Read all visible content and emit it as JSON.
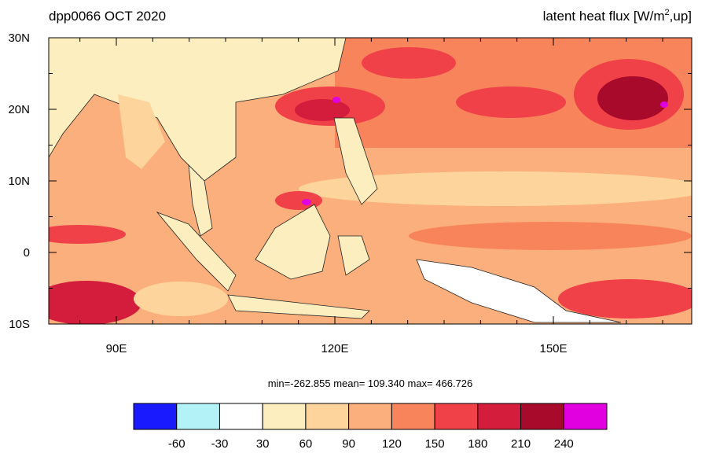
{
  "title_left": "dpp0066 OCT 2020",
  "title_right": {
    "text": "latent heat flux [W/m",
    "sup": "2",
    "tail": ",up]"
  },
  "lon_ticks": [
    {
      "value": 90,
      "label": "90E"
    },
    {
      "value": 120,
      "label": "120E"
    },
    {
      "value": 150,
      "label": "150E"
    }
  ],
  "lat_ticks": [
    {
      "value": 30,
      "label": "30N"
    },
    {
      "value": 20,
      "label": "20N"
    },
    {
      "value": 10,
      "label": "10N"
    },
    {
      "value": 0,
      "label": "0"
    },
    {
      "value": -10,
      "label": "10S"
    }
  ],
  "stats": "min=-262.855  mean= 109.340  max= 466.726",
  "colorbar": {
    "colors": [
      "#1a1aff",
      "#b3f3f8",
      "#ffffff",
      "#fdeec0",
      "#fcd49c",
      "#fbaf7c",
      "#f8845c",
      "#f04048",
      "#d41c3c",
      "#a80a2c",
      "#e000e0"
    ],
    "levels": [
      -60,
      -30,
      30,
      60,
      90,
      120,
      150,
      180,
      210,
      240
    ]
  }
}
